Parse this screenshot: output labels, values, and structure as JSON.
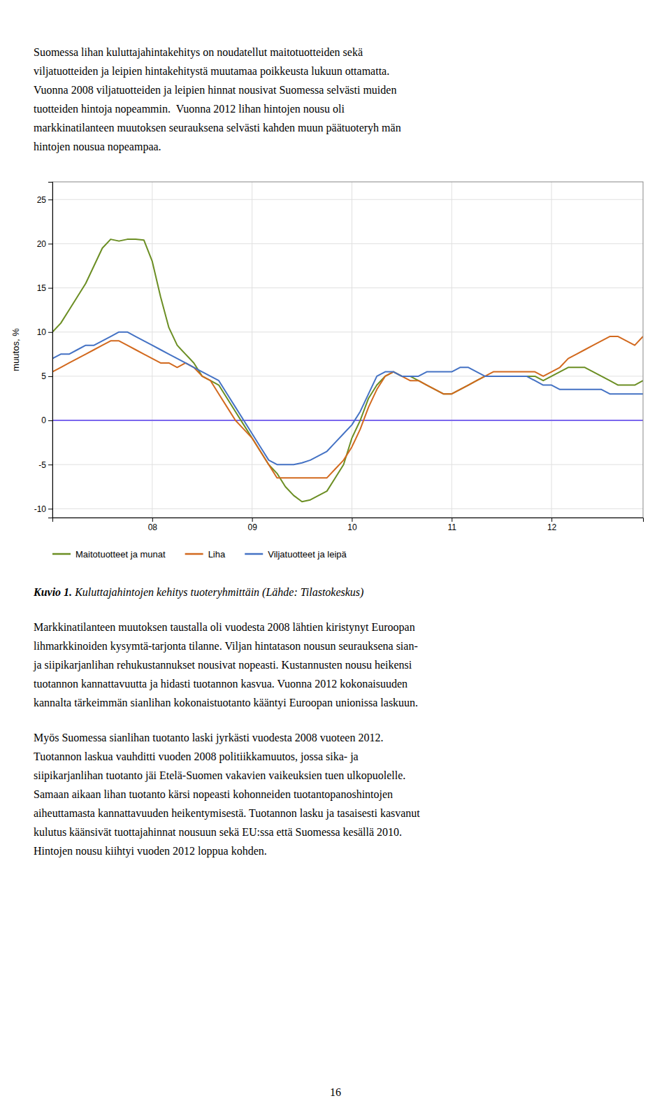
{
  "paragraphs": [
    [
      "Suomessa lihan kuluttajahintakehitys on noudatellut maitotuotteiden sekä",
      "viljatuotteiden ja leipien hintakehitystä muutamaa poikkeusta lukuun ottamatta.",
      "Vuonna 2008 viljatuotteiden ja leipien hinnat nousivat Suomessa selvästi muiden",
      "tuotteiden hintoja nopeammin.  Vuonna 2012 lihan hintojen nousu oli",
      "markkinatilanteen muutoksen seurauksena selvästi kahden muun päätuoteryh män",
      "hintojen nousua nopeampaa."
    ],
    [
      "Markkinatilanteen muutoksen taustalla oli vuodesta 2008 lähtien kiristynyt Euroopan",
      "lihmarkkinoiden kysymtä-tarjonta tilanne. Viljan hintatason nousun seurauksena sian-",
      "ja siipikarjanlihan rehukustannukset nousivat nopeasti. Kustannusten nousu heikensi",
      "tuotannon kannattavuutta ja hidasti tuotannon kasvua. Vuonna 2012 kokonaisuuden",
      "kannalta tärkeimmän sianlihan kokonaistuotanto kääntyi Euroopan unionissa laskuun."
    ],
    [
      "Myös Suomessa sianlihan tuotanto laski jyrkästi vuodesta 2008 vuoteen 2012.",
      "Tuotannon laskua vauhditti vuoden 2008 politiikkamuutos, jossa sika- ja",
      "siipikarjanlihan tuotanto jäi Etelä-Suomen vakavien vaikeuksien tuen ulkopuolelle.",
      "Samaan aikaan lihan tuotanto kärsi nopeasti kohonneiden tuotantopanoshintojen",
      "aiheuttamasta kannattavuuden heikentymisestä. Tuotannon lasku ja tasaisesti kasvanut",
      "kulutus käänsivät tuottajahinnat nousuun sekä EU:ssa että Suomessa kesällä 2010.",
      "Hintojen nousu kiihtyi vuoden 2012 loppua kohden."
    ]
  ],
  "caption": {
    "bold": "Kuvio 1.",
    "italic": " Kuluttajahintojen kehitys tuoteryhmittäin (Lähde: Tilastokeskus)"
  },
  "page_number": "16",
  "chart_data": {
    "type": "line",
    "ylabel": "muutos, %",
    "categories": [
      null,
      null,
      null,
      null,
      null,
      null,
      null,
      null,
      null,
      null,
      null,
      null,
      "08",
      null,
      null,
      null,
      null,
      null,
      null,
      null,
      null,
      null,
      null,
      null,
      "09",
      null,
      null,
      null,
      null,
      null,
      null,
      null,
      null,
      null,
      null,
      null,
      "10",
      null,
      null,
      null,
      null,
      null,
      null,
      null,
      null,
      null,
      null,
      null,
      "11",
      null,
      null,
      null,
      null,
      null,
      null,
      null,
      null,
      null,
      null,
      null,
      "12",
      null,
      null,
      null,
      null,
      null,
      null,
      null,
      null,
      null,
      null,
      null
    ],
    "series": [
      {
        "name": "Maitotuotteet ja munat",
        "color": "#6b8e23",
        "values": [
          10.0,
          11.0,
          12.5,
          14.0,
          15.5,
          17.5,
          19.5,
          20.5,
          20.3,
          20.5,
          20.5,
          20.4,
          18.0,
          14.0,
          10.5,
          8.5,
          7.5,
          6.5,
          5.0,
          4.5,
          4.0,
          2.5,
          1.0,
          -0.5,
          -2.0,
          -3.5,
          -5.0,
          -6.0,
          -7.5,
          -8.5,
          -9.2,
          -9.0,
          -8.5,
          -8.0,
          -6.5,
          -5.0,
          -2.0,
          0.0,
          2.5,
          4.0,
          5.0,
          5.5,
          5.0,
          5.0,
          4.5,
          4.0,
          3.5,
          3.0,
          3.0,
          3.5,
          4.0,
          4.5,
          5.0,
          5.0,
          5.0,
          5.0,
          5.0,
          5.0,
          5.0,
          4.5,
          5.0,
          5.5,
          6.0,
          6.0,
          6.0,
          5.5,
          5.0,
          4.5,
          4.0,
          4.0,
          4.0,
          4.5
        ]
      },
      {
        "name": "Liha",
        "color": "#d2691e",
        "values": [
          5.5,
          6.0,
          6.5,
          7.0,
          7.5,
          8.0,
          8.5,
          9.0,
          9.0,
          8.5,
          8.0,
          7.5,
          7.0,
          6.5,
          6.5,
          6.0,
          6.5,
          6.0,
          5.0,
          4.5,
          3.0,
          1.5,
          0.0,
          -1.0,
          -2.0,
          -3.5,
          -5.0,
          -6.5,
          -6.5,
          -6.5,
          -6.5,
          -6.5,
          -6.5,
          -6.5,
          -5.5,
          -4.5,
          -3.0,
          -1.0,
          1.5,
          3.5,
          5.0,
          5.5,
          5.0,
          4.5,
          4.5,
          4.0,
          3.5,
          3.0,
          3.0,
          3.5,
          4.0,
          4.5,
          5.0,
          5.5,
          5.5,
          5.5,
          5.5,
          5.5,
          5.5,
          5.0,
          5.5,
          6.0,
          7.0,
          7.5,
          8.0,
          8.5,
          9.0,
          9.5,
          9.5,
          9.0,
          8.5,
          9.5
        ]
      },
      {
        "name": "Viljatuotteet ja leipä",
        "color": "#4472c4",
        "values": [
          7.0,
          7.5,
          7.5,
          8.0,
          8.5,
          8.5,
          9.0,
          9.5,
          10.0,
          10.0,
          9.5,
          9.0,
          8.5,
          8.0,
          7.5,
          7.0,
          6.5,
          6.0,
          5.5,
          5.0,
          4.5,
          3.0,
          1.5,
          0.0,
          -1.5,
          -3.0,
          -4.5,
          -5.0,
          -5.0,
          -5.0,
          -4.8,
          -4.5,
          -4.0,
          -3.5,
          -2.5,
          -1.5,
          -0.5,
          1.0,
          3.0,
          5.0,
          5.5,
          5.5,
          5.0,
          5.0,
          5.0,
          5.5,
          5.5,
          5.5,
          5.5,
          6.0,
          6.0,
          5.5,
          5.0,
          5.0,
          5.0,
          5.0,
          5.0,
          5.0,
          4.5,
          4.0,
          4.0,
          3.5,
          3.5,
          3.5,
          3.5,
          3.5,
          3.5,
          3.0,
          3.0,
          3.0,
          3.0,
          3.0
        ]
      }
    ],
    "hlines": [
      {
        "value": 0,
        "color": "#7B68EE"
      }
    ],
    "ylim": [
      -11,
      27
    ],
    "yticks": [
      -10,
      -5,
      0,
      5,
      10,
      15,
      20,
      25
    ],
    "grid": true,
    "legend": "bottom"
  }
}
